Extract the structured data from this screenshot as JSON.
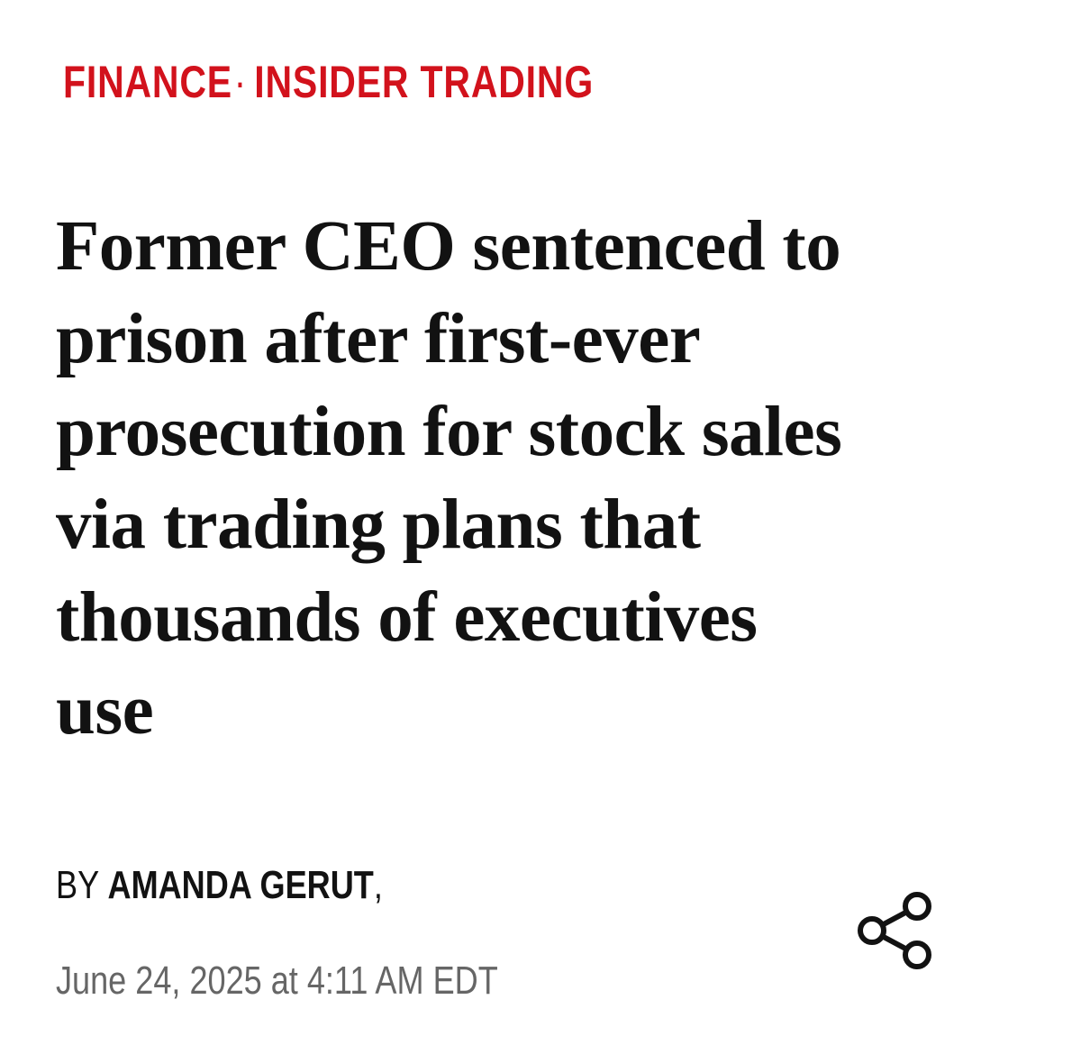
{
  "breadcrumb": {
    "items": [
      "FINANCE",
      "INSIDER TRADING"
    ],
    "separator": "·"
  },
  "headline_lines": [
    "Former CEO sentenced to",
    "prison after first-ever",
    "prosecution for stock sales",
    "via trading plans that",
    "thousands of executives",
    "use"
  ],
  "byline": {
    "prefix": "BY",
    "author": "AMANDA GERUT",
    "suffix": ","
  },
  "date": "June 24, 2025 at 4:11 AM EDT"
}
